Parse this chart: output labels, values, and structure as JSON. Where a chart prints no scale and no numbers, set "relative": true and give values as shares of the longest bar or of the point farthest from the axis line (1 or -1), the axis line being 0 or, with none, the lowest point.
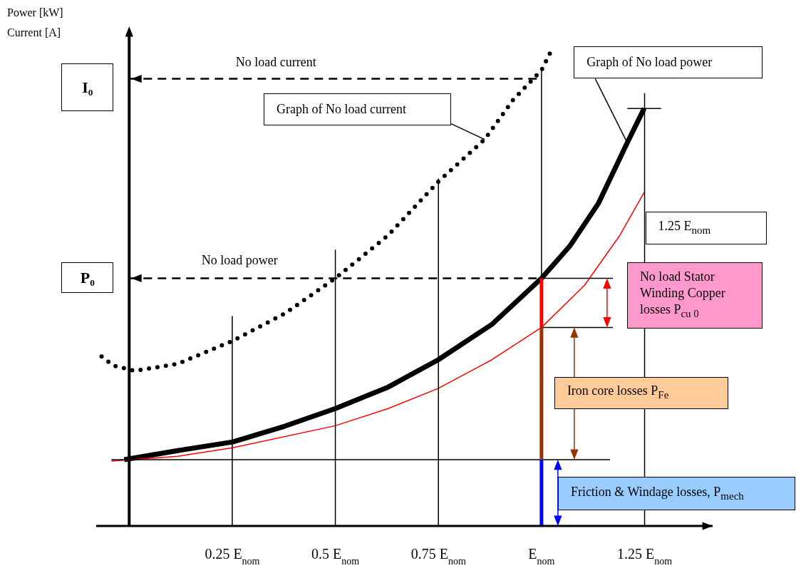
{
  "chart_data": {
    "type": "line",
    "relative": true,
    "marker": "none",
    "ylabel": "Power [kW]\nCurrent [A]",
    "xlim": [
      -0.08,
      1.415
    ],
    "xticks": [
      {
        "value": 0.25,
        "label": "0.25 E$_{nom}$"
      },
      {
        "value": 0.5,
        "label": "0.5 E$_{nom}$"
      },
      {
        "value": 0.75,
        "label": "0.75 E$_{nom}$"
      },
      {
        "value": 1,
        "label": "E$_{nom}$"
      },
      {
        "value": 1.25,
        "label": "1.25 E$_{nom}$"
      }
    ],
    "series": [
      {
        "color": "#000000",
        "line_style": "dotted",
        "x": [
          -0.067,
          -0.038,
          0.014,
          0.118,
          0.251,
          0.377,
          0.5,
          0.628,
          0.749,
          0.862,
          0.931,
          1.0,
          1.026
        ],
        "values": [
          0.355,
          0.336,
          0.325,
          0.34,
          0.388,
          0.445,
          0.519,
          0.609,
          0.721,
          0.81,
          0.893,
          0.955,
          1.0
        ]
      },
      {
        "color": "#000000",
        "line_style": "solid",
        "x": [
          -0.012,
          0.118,
          0.251,
          0.377,
          0.5,
          0.628,
          0.749,
          0.879,
          1.0,
          1.069,
          1.138,
          1.208,
          1.249
        ],
        "values": [
          0.139,
          0.158,
          0.176,
          0.209,
          0.246,
          0.291,
          0.348,
          0.422,
          0.519,
          0.587,
          0.676,
          0.803,
          0.875
        ]
      },
      {
        "color": "#ff0000",
        "line_style": "solid",
        "x": [
          -0.043,
          0.118,
          0.251,
          0.5,
          0.628,
          0.749,
          0.879,
          1.0,
          1.104,
          1.19,
          1.249
        ],
        "values": [
          0.136,
          0.146,
          0.164,
          0.21,
          0.246,
          0.288,
          0.348,
          0.416,
          0.504,
          0.609,
          0.699
        ]
      },
      {
        "color": "#000000",
        "line_style": "dashed",
        "x": [
          0,
          1
        ],
        "values": [
          0.937,
          0.937
        ]
      },
      {
        "color": "#000000",
        "line_style": "dashed",
        "x": [
          0,
          1
        ],
        "values": [
          0.519,
          0.519
        ]
      },
      {
        "color": "#000000",
        "line_style": "solid",
        "x": [
          0.25,
          0.25
        ],
        "values": [
          0,
          0.44
        ]
      },
      {
        "color": "#000000",
        "line_style": "solid",
        "x": [
          0.5,
          0.5
        ],
        "values": [
          0,
          0.579
        ]
      },
      {
        "color": "#000000",
        "line_style": "solid",
        "x": [
          0.75,
          0.75
        ],
        "values": [
          0,
          0.728
        ]
      },
      {
        "color": "#000000",
        "line_style": "solid",
        "x": [
          1,
          1
        ],
        "values": [
          0.519,
          0.955
        ]
      },
      {
        "color": "#000000",
        "line_style": "solid",
        "x": [
          1.25,
          1.25
        ],
        "values": [
          0,
          0.907
        ]
      },
      {
        "color": "#000000",
        "line_style": "solid",
        "x": [
          1,
          1.173
        ],
        "values": [
          0.519,
          0.519
        ]
      },
      {
        "color": "#000000",
        "line_style": "solid",
        "x": [
          1,
          1.173
        ],
        "values": [
          0.416,
          0.416
        ]
      },
      {
        "color": "#000000",
        "line_style": "solid",
        "x": [
          -0.043,
          1.166
        ],
        "values": [
          0.139,
          0.139
        ]
      },
      {
        "color": "#000000",
        "line_style": "solid",
        "x": [
          1.208,
          1.29
        ],
        "values": [
          0.875,
          0.875
        ]
      },
      {
        "color": "#ff0000",
        "line_style": "solid",
        "x": [
          1,
          1
        ],
        "values": [
          0.416,
          0.519
        ]
      },
      {
        "color": "#993300",
        "line_style": "solid",
        "x": [
          1,
          1
        ],
        "values": [
          0.139,
          0.416
        ]
      },
      {
        "color": "#0000ff",
        "line_style": "solid",
        "x": [
          1,
          1
        ],
        "values": [
          0,
          0.139
        ]
      }
    ],
    "annotations": [
      {
        "text": "No load current",
        "x": 0.356,
        "y": 0.937
      },
      {
        "text": "No load power",
        "x": 0.268,
        "y": 0.519
      },
      {
        "text": "I₀",
        "x": 0,
        "y": 0.937
      },
      {
        "text": "P₀",
        "x": 0,
        "y": 0.519
      },
      "Graph of No load current",
      {
        "text": "Graph of No load power",
        "x": 1.208,
        "y": 0.803
      },
      {
        "text": "1.25 E$_{nom}$",
        "x": 1.25,
        "y": 0.624
      },
      "No load Stator Winding Copper losses P$_{cu 0}$",
      "Iron core losses P$_{Fe}$",
      "Friction & Windage losses, P$_{mech}$"
    ]
  }
}
